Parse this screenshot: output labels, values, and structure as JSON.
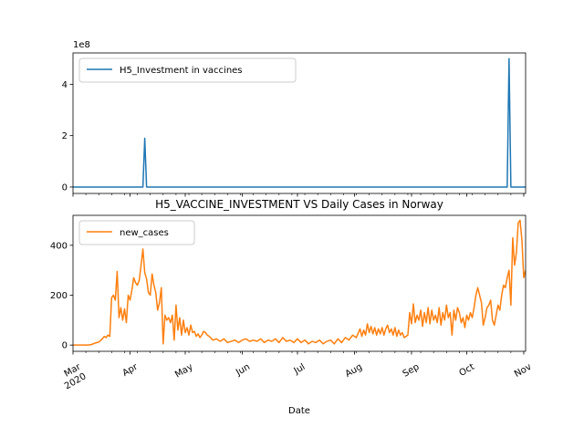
{
  "chart_data": [
    {
      "type": "line",
      "title": "",
      "offset_label": "1e8",
      "ylim": [
        -0.25,
        5.22
      ],
      "yticks": [
        0,
        2,
        4
      ],
      "ytick_labels": [
        "0",
        "2",
        "4"
      ],
      "legend": {
        "placement": "top-left",
        "entries": [
          "H5_Investment in vaccines"
        ]
      },
      "grid": false,
      "series": [
        {
          "name": "H5_Investment in vaccines",
          "color": "#1f77b4",
          "points": [
            [
              0,
              0
            ],
            [
              38,
              0
            ],
            [
              39,
              1.9
            ],
            [
              40,
              0
            ],
            [
              236,
              0
            ],
            [
              237,
              5.0
            ],
            [
              238,
              0
            ],
            [
              246,
              0
            ]
          ]
        }
      ]
    },
    {
      "type": "line",
      "title": "H5_VACCINE_INVESTMENT VS Daily Cases in Norway",
      "xlabel": "Date",
      "ylim": [
        -25,
        520
      ],
      "yticks": [
        0,
        200,
        400
      ],
      "ytick_labels": [
        "0",
        "200",
        "400"
      ],
      "xlim": [
        0,
        246
      ],
      "xticks": [
        0,
        31,
        61,
        92,
        122,
        153,
        184,
        214,
        245
      ],
      "xtick_labels": [
        "Mar\n2020",
        "Apr",
        "May",
        "Jun",
        "Jul",
        "Aug",
        "Sep",
        "Oct",
        "Nov"
      ],
      "legend": {
        "placement": "top-left",
        "entries": [
          "new_cases"
        ]
      },
      "grid": false,
      "series": [
        {
          "name": "new_cases",
          "color": "#ff7f0e",
          "points": [
            [
              0,
              0
            ],
            [
              4,
              0
            ],
            [
              8,
              0
            ],
            [
              10,
              2
            ],
            [
              12,
              8
            ],
            [
              14,
              12
            ],
            [
              16,
              25
            ],
            [
              17,
              35
            ],
            [
              18,
              30
            ],
            [
              19,
              40
            ],
            [
              20,
              35
            ],
            [
              21,
              190
            ],
            [
              22,
              200
            ],
            [
              23,
              180
            ],
            [
              24,
              295
            ],
            [
              25,
              110
            ],
            [
              26,
              150
            ],
            [
              27,
              100
            ],
            [
              28,
              145
            ],
            [
              29,
              90
            ],
            [
              30,
              200
            ],
            [
              31,
              180
            ],
            [
              32,
              220
            ],
            [
              33,
              270
            ],
            [
              34,
              250
            ],
            [
              35,
              240
            ],
            [
              36,
              260
            ],
            [
              37,
              320
            ],
            [
              38,
              385
            ],
            [
              39,
              290
            ],
            [
              40,
              265
            ],
            [
              41,
              210
            ],
            [
              42,
              200
            ],
            [
              43,
              285
            ],
            [
              44,
              240
            ],
            [
              45,
              210
            ],
            [
              46,
              140
            ],
            [
              47,
              170
            ],
            [
              48,
              230
            ],
            [
              49,
              5
            ],
            [
              50,
              120
            ],
            [
              51,
              100
            ],
            [
              52,
              110
            ],
            [
              53,
              90
            ],
            [
              54,
              120
            ],
            [
              55,
              20
            ],
            [
              56,
              160
            ],
            [
              57,
              60
            ],
            [
              58,
              110
            ],
            [
              59,
              40
            ],
            [
              60,
              100
            ],
            [
              61,
              50
            ],
            [
              62,
              70
            ],
            [
              63,
              40
            ],
            [
              64,
              80
            ],
            [
              65,
              50
            ],
            [
              66,
              55
            ],
            [
              67,
              35
            ],
            [
              68,
              45
            ],
            [
              69,
              30
            ],
            [
              70,
              40
            ],
            [
              71,
              55
            ],
            [
              72,
              50
            ],
            [
              73,
              40
            ],
            [
              74,
              35
            ],
            [
              76,
              20
            ],
            [
              78,
              25
            ],
            [
              80,
              15
            ],
            [
              82,
              25
            ],
            [
              84,
              10
            ],
            [
              86,
              15
            ],
            [
              88,
              20
            ],
            [
              90,
              10
            ],
            [
              92,
              20
            ],
            [
              94,
              25
            ],
            [
              96,
              15
            ],
            [
              98,
              20
            ],
            [
              100,
              15
            ],
            [
              102,
              25
            ],
            [
              104,
              10
            ],
            [
              106,
              20
            ],
            [
              108,
              15
            ],
            [
              110,
              25
            ],
            [
              112,
              10
            ],
            [
              114,
              30
            ],
            [
              116,
              15
            ],
            [
              118,
              20
            ],
            [
              120,
              10
            ],
            [
              122,
              25
            ],
            [
              124,
              10
            ],
            [
              126,
              20
            ],
            [
              128,
              5
            ],
            [
              130,
              15
            ],
            [
              132,
              10
            ],
            [
              134,
              20
            ],
            [
              136,
              5
            ],
            [
              138,
              15
            ],
            [
              140,
              20
            ],
            [
              142,
              5
            ],
            [
              144,
              25
            ],
            [
              146,
              10
            ],
            [
              148,
              30
            ],
            [
              150,
              20
            ],
            [
              152,
              40
            ],
            [
              154,
              30
            ],
            [
              156,
              65
            ],
            [
              157,
              35
            ],
            [
              158,
              60
            ],
            [
              159,
              40
            ],
            [
              160,
              85
            ],
            [
              161,
              50
            ],
            [
              162,
              75
            ],
            [
              163,
              45
            ],
            [
              164,
              70
            ],
            [
              165,
              40
            ],
            [
              166,
              65
            ],
            [
              167,
              45
            ],
            [
              168,
              70
            ],
            [
              169,
              40
            ],
            [
              170,
              65
            ],
            [
              171,
              80
            ],
            [
              172,
              50
            ],
            [
              173,
              65
            ],
            [
              174,
              40
            ],
            [
              175,
              70
            ],
            [
              176,
              35
            ],
            [
              177,
              60
            ],
            [
              178,
              40
            ],
            [
              179,
              50
            ],
            [
              180,
              30
            ],
            [
              182,
              40
            ],
            [
              183,
              130
            ],
            [
              184,
              85
            ],
            [
              185,
              165
            ],
            [
              186,
              90
            ],
            [
              187,
              120
            ],
            [
              188,
              100
            ],
            [
              189,
              140
            ],
            [
              190,
              75
            ],
            [
              191,
              130
            ],
            [
              192,
              90
            ],
            [
              193,
              150
            ],
            [
              194,
              85
            ],
            [
              195,
              140
            ],
            [
              196,
              100
            ],
            [
              197,
              120
            ],
            [
              198,
              90
            ],
            [
              199,
              150
            ],
            [
              200,
              80
            ],
            [
              201,
              130
            ],
            [
              202,
              100
            ],
            [
              203,
              160
            ],
            [
              204,
              110
            ],
            [
              205,
              130
            ],
            [
              206,
              40
            ],
            [
              207,
              140
            ],
            [
              208,
              100
            ],
            [
              209,
              150
            ],
            [
              210,
              130
            ],
            [
              211,
              90
            ],
            [
              212,
              110
            ],
            [
              213,
              70
            ],
            [
              214,
              120
            ],
            [
              215,
              100
            ],
            [
              216,
              130
            ],
            [
              217,
              110
            ],
            [
              218,
              150
            ],
            [
              219,
              200
            ],
            [
              220,
              230
            ],
            [
              221,
              200
            ],
            [
              222,
              170
            ],
            [
              223,
              80
            ],
            [
              224,
              110
            ],
            [
              225,
              150
            ],
            [
              226,
              160
            ],
            [
              227,
              180
            ],
            [
              228,
              100
            ],
            [
              229,
              80
            ],
            [
              230,
              120
            ],
            [
              231,
              160
            ],
            [
              232,
              140
            ],
            [
              233,
              200
            ],
            [
              234,
              240
            ],
            [
              235,
              230
            ],
            [
              236,
              270
            ],
            [
              237,
              300
            ],
            [
              238,
              160
            ],
            [
              239,
              430
            ],
            [
              240,
              320
            ],
            [
              241,
              370
            ],
            [
              242,
              490
            ],
            [
              243,
              500
            ],
            [
              244,
              420
            ],
            [
              245,
              270
            ],
            [
              246,
              300
            ]
          ]
        }
      ]
    }
  ]
}
